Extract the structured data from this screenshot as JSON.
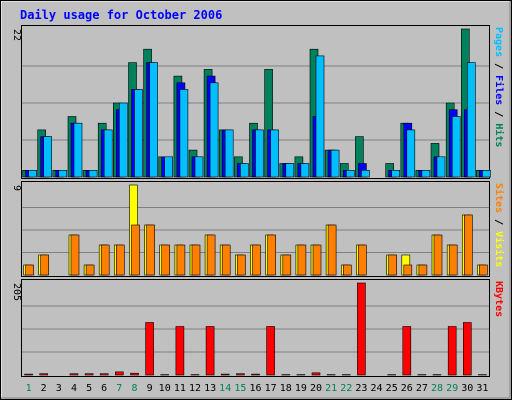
{
  "chart_data": {
    "type": "bar",
    "title": "Daily usage for October 2006",
    "categories": [
      "1",
      "2",
      "3",
      "4",
      "5",
      "6",
      "7",
      "8",
      "9",
      "10",
      "11",
      "12",
      "13",
      "14",
      "15",
      "16",
      "17",
      "18",
      "19",
      "20",
      "21",
      "22",
      "23",
      "24",
      "25",
      "26",
      "27",
      "28",
      "29",
      "30",
      "31"
    ],
    "weekend_days": [
      1,
      7,
      8,
      14,
      15,
      21,
      22,
      28,
      29
    ],
    "panels": [
      {
        "name": "hits-files-pages",
        "ymax_label": "22",
        "ylim": [
          0,
          22
        ],
        "legend": [
          "Pages",
          "Files",
          "Hits"
        ],
        "legend_separator": " / ",
        "series": [
          {
            "name": "Hits",
            "color": "#00805c",
            "values": [
              1,
              7,
              1,
              9,
              1,
              8,
              11,
              17,
              19,
              3,
              15,
              4,
              16,
              7,
              3,
              8,
              16,
              2,
              3,
              19,
              4,
              2,
              6,
              0,
              2,
              8,
              1,
              5,
              11,
              22,
              1
            ]
          },
          {
            "name": "Files",
            "color": "#0000ff",
            "values": [
              1,
              6,
              1,
              8,
              1,
              7,
              10,
              13,
              17,
              3,
              14,
              3,
              15,
              7,
              2,
              7,
              7,
              2,
              2,
              9,
              4,
              1,
              2,
              0,
              1,
              8,
              1,
              3,
              10,
              10,
              1
            ]
          },
          {
            "name": "Pages",
            "color": "#00bfff",
            "values": [
              1,
              6,
              1,
              8,
              1,
              7,
              11,
              13,
              17,
              3,
              13,
              3,
              14,
              7,
              2,
              7,
              7,
              2,
              2,
              18,
              4,
              1,
              1,
              0,
              1,
              7,
              1,
              3,
              9,
              17,
              1
            ]
          }
        ]
      },
      {
        "name": "visits-sites",
        "ymax_label": "9",
        "ylim": [
          0,
          9
        ],
        "legend": [
          "Sites",
          "Visits"
        ],
        "legend_separator": " / ",
        "series": [
          {
            "name": "Visits",
            "color": "#ffff00",
            "values": [
              1,
              2,
              0,
              4,
              1,
              3,
              3,
              9,
              5,
              3,
              3,
              3,
              4,
              3,
              2,
              3,
              4,
              2,
              3,
              3,
              5,
              1,
              3,
              0,
              2,
              2,
              1,
              4,
              3,
              6,
              1
            ]
          },
          {
            "name": "Sites",
            "color": "#ff8000",
            "values": [
              1,
              2,
              0,
              4,
              1,
              3,
              3,
              5,
              5,
              3,
              3,
              3,
              4,
              3,
              2,
              3,
              4,
              2,
              3,
              3,
              5,
              1,
              3,
              0,
              2,
              1,
              1,
              4,
              3,
              6,
              1
            ]
          }
        ]
      },
      {
        "name": "kbytes",
        "ymax_label": "205",
        "ylim": [
          0,
          205
        ],
        "legend": [
          "KBytes"
        ],
        "legend_separator": "",
        "series": [
          {
            "name": "KBytes",
            "color": "#ff0000",
            "values": [
              2,
              3,
              0,
              3,
              3,
              3,
              7,
              4,
              117,
              1,
              108,
              1,
              108,
              2,
              3,
              2,
              108,
              1,
              1,
              5,
              1,
              1,
              205,
              0,
              1,
              108,
              1,
              1,
              108,
              117,
              1
            ]
          }
        ]
      }
    ],
    "colors": {
      "outer_bg": "#c0c0c0",
      "plot_bg": "#c0c0c0",
      "grid": "#808080",
      "title": "#0000ff",
      "axis_label": "#000000",
      "weekday_label": "#000000",
      "weekend_label": "#00805c",
      "bar_outline": "#000000"
    }
  }
}
